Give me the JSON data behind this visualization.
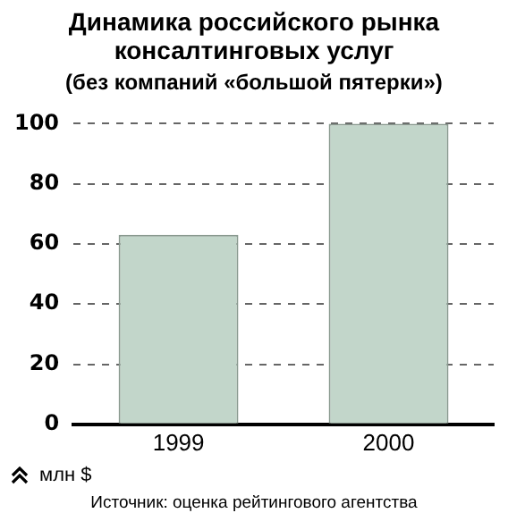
{
  "chart_data": {
    "type": "bar",
    "title": "Динамика российского рынка консалтинговых услуг",
    "subtitle": "(без компаний «большой пятерки»)",
    "ylabel": "млн $",
    "annotations": [
      "Источник: оценка рейтингового агентства"
    ],
    "categories": [
      "1999",
      "2000"
    ],
    "values": [
      63,
      100
    ],
    "color": "#c2d6ca",
    "ylim": [
      0,
      100
    ],
    "yticks": [
      0,
      20,
      40,
      60,
      80,
      100
    ],
    "grid": "y",
    "legend": false
  }
}
